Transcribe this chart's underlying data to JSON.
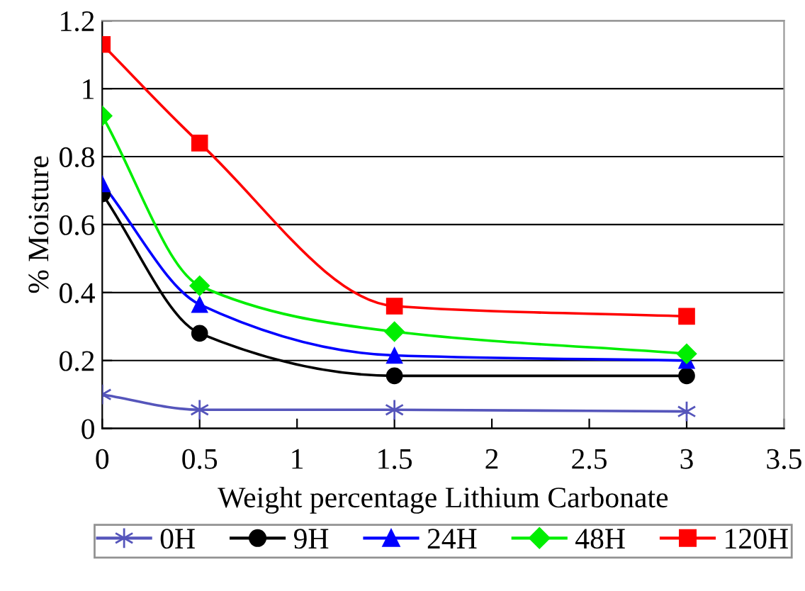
{
  "chart_data": {
    "type": "line",
    "xlabel": "Weight percentage Lithium Carbonate",
    "ylabel": "% Moisture",
    "x": [
      0,
      0.5,
      1.5,
      3
    ],
    "series": [
      {
        "name": "0H",
        "color": "#5555bb",
        "marker": "cross",
        "values": [
          0.1,
          0.055,
          0.055,
          0.05
        ]
      },
      {
        "name": "9H",
        "color": "#000000",
        "marker": "circle",
        "values": [
          0.69,
          0.28,
          0.155,
          0.155
        ]
      },
      {
        "name": "24H",
        "color": "#0000ff",
        "marker": "triangle",
        "values": [
          0.72,
          0.365,
          0.215,
          0.2
        ]
      },
      {
        "name": "48H",
        "color": "#00ee00",
        "marker": "diamond",
        "values": [
          0.92,
          0.42,
          0.285,
          0.22
        ]
      },
      {
        "name": "120H",
        "color": "#ff0000",
        "marker": "square",
        "values": [
          1.13,
          0.84,
          0.36,
          0.33
        ]
      }
    ],
    "xlim": [
      0,
      3.5
    ],
    "xticks": [
      0,
      0.5,
      1,
      1.5,
      2,
      2.5,
      3,
      3.5
    ],
    "ylim": [
      0,
      1.2
    ],
    "yticks": [
      0,
      0.2,
      0.4,
      0.6,
      0.8,
      1,
      1.2
    ],
    "grid": "y",
    "legend": "bottom",
    "line_style": "solid"
  }
}
